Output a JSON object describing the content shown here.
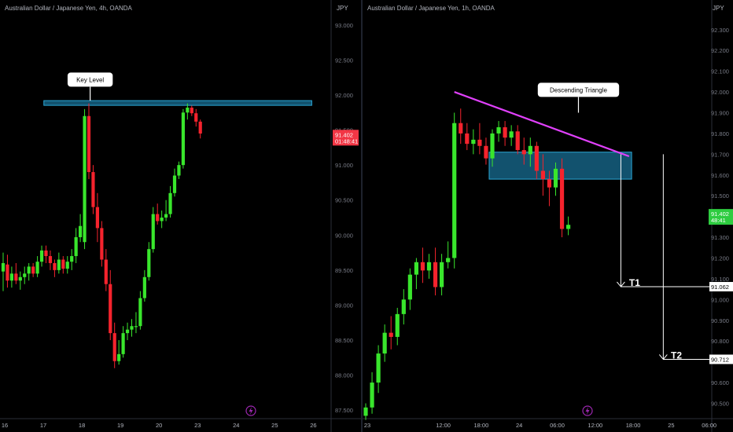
{
  "currency": "JPY",
  "chart_data": [
    {
      "type": "candlestick",
      "title": "Australian Dollar / Japanese Yen, 4h, OANDA",
      "ylim": [
        87.39,
        93.2
      ],
      "yticks": [
        87.5,
        88.0,
        88.5,
        89.0,
        89.5,
        90.0,
        90.5,
        91.0,
        91.5,
        92.0,
        92.5,
        93.0
      ],
      "ytick_labels": [
        "87.500",
        "88.000",
        "88.500",
        "89.000",
        "89.500",
        "90.000",
        "90.500",
        "91.000",
        "91.500",
        "92.000",
        "92.500",
        "93.000"
      ],
      "xlim": [
        -0.5,
        78
      ],
      "x_labels": [
        {
          "i": 0,
          "label": "16"
        },
        {
          "i": 9,
          "label": "17"
        },
        {
          "i": 18,
          "label": "18"
        },
        {
          "i": 27,
          "label": "19"
        },
        {
          "i": 36,
          "label": "20"
        },
        {
          "i": 45,
          "label": "23"
        },
        {
          "i": 54,
          "label": "24"
        },
        {
          "i": 63,
          "label": "25"
        },
        {
          "i": 72,
          "label": "26"
        }
      ],
      "price_label": {
        "value": 91.402,
        "text": "91.402",
        "countdown": "01:48:41",
        "color": "#f23645"
      },
      "zones": [
        {
          "from": 91.86,
          "to": 91.92,
          "x_from": 9.5,
          "x_to": 72
        }
      ],
      "callouts": [
        {
          "text": "Key Level",
          "x": 20.3,
          "y": 92.22,
          "tip_x": 20.3,
          "tip_y": 91.92
        }
      ],
      "candles": [
        {
          "o": 89.48,
          "h": 89.75,
          "l": 89.2,
          "c": 89.6
        },
        {
          "o": 89.58,
          "h": 89.72,
          "l": 89.25,
          "c": 89.35
        },
        {
          "o": 89.35,
          "h": 89.55,
          "l": 89.25,
          "c": 89.45
        },
        {
          "o": 89.45,
          "h": 89.6,
          "l": 89.3,
          "c": 89.35
        },
        {
          "o": 89.35,
          "h": 89.48,
          "l": 89.22,
          "c": 89.4
        },
        {
          "o": 89.4,
          "h": 89.55,
          "l": 89.3,
          "c": 89.45
        },
        {
          "o": 89.45,
          "h": 89.6,
          "l": 89.35,
          "c": 89.55
        },
        {
          "o": 89.55,
          "h": 89.6,
          "l": 89.4,
          "c": 89.45
        },
        {
          "o": 89.45,
          "h": 89.7,
          "l": 89.4,
          "c": 89.62
        },
        {
          "o": 89.62,
          "h": 89.85,
          "l": 89.55,
          "c": 89.78
        },
        {
          "o": 89.78,
          "h": 89.85,
          "l": 89.6,
          "c": 89.7
        },
        {
          "o": 89.7,
          "h": 89.78,
          "l": 89.5,
          "c": 89.6
        },
        {
          "o": 89.6,
          "h": 89.65,
          "l": 89.4,
          "c": 89.5
        },
        {
          "o": 89.5,
          "h": 89.75,
          "l": 89.45,
          "c": 89.65
        },
        {
          "o": 89.65,
          "h": 89.7,
          "l": 89.45,
          "c": 89.52
        },
        {
          "o": 89.52,
          "h": 89.7,
          "l": 89.45,
          "c": 89.62
        },
        {
          "o": 89.62,
          "h": 89.8,
          "l": 89.5,
          "c": 89.7
        },
        {
          "o": 89.7,
          "h": 90.1,
          "l": 89.6,
          "c": 89.97
        },
        {
          "o": 89.97,
          "h": 90.3,
          "l": 89.9,
          "c": 90.13
        },
        {
          "o": 89.9,
          "h": 91.8,
          "l": 89.8,
          "c": 91.7
        },
        {
          "o": 91.7,
          "h": 91.88,
          "l": 90.8,
          "c": 90.9
        },
        {
          "o": 90.9,
          "h": 91.0,
          "l": 90.3,
          "c": 90.4
        },
        {
          "o": 90.4,
          "h": 90.6,
          "l": 89.9,
          "c": 90.1
        },
        {
          "o": 90.1,
          "h": 90.2,
          "l": 89.55,
          "c": 89.65
        },
        {
          "o": 89.65,
          "h": 89.8,
          "l": 89.2,
          "c": 89.3
        },
        {
          "o": 89.3,
          "h": 89.5,
          "l": 88.5,
          "c": 88.6
        },
        {
          "o": 88.6,
          "h": 88.75,
          "l": 88.1,
          "c": 88.2
        },
        {
          "o": 88.2,
          "h": 88.5,
          "l": 88.15,
          "c": 88.3
        },
        {
          "o": 88.3,
          "h": 88.7,
          "l": 88.25,
          "c": 88.6
        },
        {
          "o": 88.6,
          "h": 88.75,
          "l": 88.5,
          "c": 88.65
        },
        {
          "o": 88.65,
          "h": 88.8,
          "l": 88.55,
          "c": 88.7
        },
        {
          "o": 88.7,
          "h": 88.9,
          "l": 88.6,
          "c": 88.7
        },
        {
          "o": 88.7,
          "h": 89.2,
          "l": 88.65,
          "c": 89.1
        },
        {
          "o": 89.1,
          "h": 89.5,
          "l": 89.05,
          "c": 89.4
        },
        {
          "o": 89.4,
          "h": 89.9,
          "l": 89.35,
          "c": 89.8
        },
        {
          "o": 89.8,
          "h": 90.4,
          "l": 89.75,
          "c": 90.3
        },
        {
          "o": 90.3,
          "h": 90.45,
          "l": 90.15,
          "c": 90.2
        },
        {
          "o": 90.2,
          "h": 90.35,
          "l": 90.1,
          "c": 90.25
        },
        {
          "o": 90.25,
          "h": 90.5,
          "l": 90.2,
          "c": 90.3
        },
        {
          "o": 90.3,
          "h": 90.7,
          "l": 90.25,
          "c": 90.6
        },
        {
          "o": 90.6,
          "h": 90.95,
          "l": 90.55,
          "c": 90.85
        },
        {
          "o": 90.85,
          "h": 91.05,
          "l": 90.8,
          "c": 91.0
        },
        {
          "o": 91.0,
          "h": 91.8,
          "l": 90.95,
          "c": 91.75
        },
        {
          "o": 91.75,
          "h": 91.88,
          "l": 91.65,
          "c": 91.82
        },
        {
          "o": 91.82,
          "h": 91.85,
          "l": 91.7,
          "c": 91.74
        },
        {
          "o": 91.74,
          "h": 91.8,
          "l": 91.55,
          "c": 91.62
        },
        {
          "o": 91.62,
          "h": 91.65,
          "l": 91.38,
          "c": 91.45
        }
      ]
    },
    {
      "type": "candlestick",
      "title": "Australian Dollar / Japanese Yen, 1h, OANDA",
      "ylim": [
        90.43,
        92.39
      ],
      "yticks": [
        90.5,
        90.6,
        90.7,
        90.8,
        90.9,
        91.0,
        91.1,
        91.2,
        91.3,
        91.4,
        91.5,
        91.6,
        91.7,
        91.8,
        91.9,
        92.0,
        92.1,
        92.2,
        92.3
      ],
      "ytick_labels": [
        "90.500",
        "90.600",
        "90.700",
        "90.800",
        "90.900",
        "91.000",
        "91.100",
        "91.200",
        "91.300",
        "91.400",
        "91.500",
        "91.600",
        "91.700",
        "91.800",
        "91.900",
        "92.000",
        "92.100",
        "92.200",
        "92.300"
      ],
      "xlim": [
        -0.5,
        108
      ],
      "x_labels": [
        {
          "i": 0,
          "label": "23"
        },
        {
          "i": 12,
          "label": "12:00"
        },
        {
          "i": 18,
          "label": "18:00"
        },
        {
          "i": 24,
          "label": "24"
        },
        {
          "i": 30,
          "label": "06:00"
        },
        {
          "i": 36,
          "label": "12:00"
        },
        {
          "i": 42,
          "label": "18:00"
        },
        {
          "i": 48,
          "label": "25"
        },
        {
          "i": 54,
          "label": "06:00"
        }
      ],
      "price_label": {
        "value": 91.402,
        "text": "91.402",
        "countdown": "48:41",
        "color": "#2ecc40"
      },
      "level_labels": [
        {
          "value": 91.062,
          "text": "91.062"
        },
        {
          "value": 90.712,
          "text": "90.712"
        }
      ],
      "zones": [
        {
          "from": 91.58,
          "to": 91.71,
          "x_from": 19.5,
          "x_to": 42
        }
      ],
      "trendline": {
        "x1": 14,
        "y1": 92.0,
        "x2": 41.6,
        "y2": 91.69,
        "color": "#e040fb"
      },
      "callouts": [
        {
          "text": "Descending Triangle",
          "x": 33.6,
          "y": 92.01,
          "tip_x": 33.6,
          "tip_y": 91.9
        }
      ],
      "targets": [
        {
          "name": "T1",
          "value": 91.062,
          "arrow_x": 40.3,
          "label_x": 41.6
        },
        {
          "name": "T2",
          "value": 90.712,
          "arrow_x": 47.0,
          "label_x": 48.2
        }
      ],
      "candles": [
        {
          "o": 90.44,
          "h": 90.5,
          "l": 90.42,
          "c": 90.48
        },
        {
          "o": 90.48,
          "h": 90.65,
          "l": 90.45,
          "c": 90.6
        },
        {
          "o": 90.6,
          "h": 90.78,
          "l": 90.55,
          "c": 90.74
        },
        {
          "o": 90.74,
          "h": 90.88,
          "l": 90.7,
          "c": 90.84
        },
        {
          "o": 90.84,
          "h": 90.92,
          "l": 90.76,
          "c": 90.82
        },
        {
          "o": 90.82,
          "h": 90.96,
          "l": 90.78,
          "c": 90.93
        },
        {
          "o": 90.93,
          "h": 91.05,
          "l": 90.88,
          "c": 91.0
        },
        {
          "o": 91.0,
          "h": 91.15,
          "l": 90.95,
          "c": 91.12
        },
        {
          "o": 91.12,
          "h": 91.2,
          "l": 91.05,
          "c": 91.18
        },
        {
          "o": 91.18,
          "h": 91.25,
          "l": 91.08,
          "c": 91.14
        },
        {
          "o": 91.14,
          "h": 91.22,
          "l": 91.1,
          "c": 91.18
        },
        {
          "o": 91.18,
          "h": 91.25,
          "l": 91.02,
          "c": 91.06
        },
        {
          "o": 91.06,
          "h": 91.22,
          "l": 91.02,
          "c": 91.18
        },
        {
          "o": 91.18,
          "h": 91.28,
          "l": 91.15,
          "c": 91.2
        },
        {
          "o": 91.2,
          "h": 91.9,
          "l": 91.15,
          "c": 91.85
        },
        {
          "o": 91.85,
          "h": 91.92,
          "l": 91.75,
          "c": 91.8
        },
        {
          "o": 91.8,
          "h": 91.85,
          "l": 91.72,
          "c": 91.75
        },
        {
          "o": 91.75,
          "h": 91.82,
          "l": 91.7,
          "c": 91.77
        },
        {
          "o": 91.77,
          "h": 91.85,
          "l": 91.7,
          "c": 91.74
        },
        {
          "o": 91.74,
          "h": 91.78,
          "l": 91.65,
          "c": 91.68
        },
        {
          "o": 91.68,
          "h": 91.82,
          "l": 91.64,
          "c": 91.8
        },
        {
          "o": 91.8,
          "h": 91.86,
          "l": 91.76,
          "c": 91.83
        },
        {
          "o": 91.83,
          "h": 91.86,
          "l": 91.74,
          "c": 91.78
        },
        {
          "o": 91.78,
          "h": 91.84,
          "l": 91.74,
          "c": 91.81
        },
        {
          "o": 91.81,
          "h": 91.84,
          "l": 91.7,
          "c": 91.72
        },
        {
          "o": 91.72,
          "h": 91.78,
          "l": 91.65,
          "c": 91.7
        },
        {
          "o": 91.7,
          "h": 91.78,
          "l": 91.64,
          "c": 91.74
        },
        {
          "o": 91.74,
          "h": 91.76,
          "l": 91.58,
          "c": 91.62
        },
        {
          "o": 91.62,
          "h": 91.7,
          "l": 91.5,
          "c": 91.58
        },
        {
          "o": 91.58,
          "h": 91.62,
          "l": 91.45,
          "c": 91.54
        },
        {
          "o": 91.54,
          "h": 91.66,
          "l": 91.5,
          "c": 91.63
        },
        {
          "o": 91.63,
          "h": 91.68,
          "l": 91.3,
          "c": 91.34
        },
        {
          "o": 91.34,
          "h": 91.4,
          "l": 91.31,
          "c": 91.36
        }
      ]
    }
  ]
}
